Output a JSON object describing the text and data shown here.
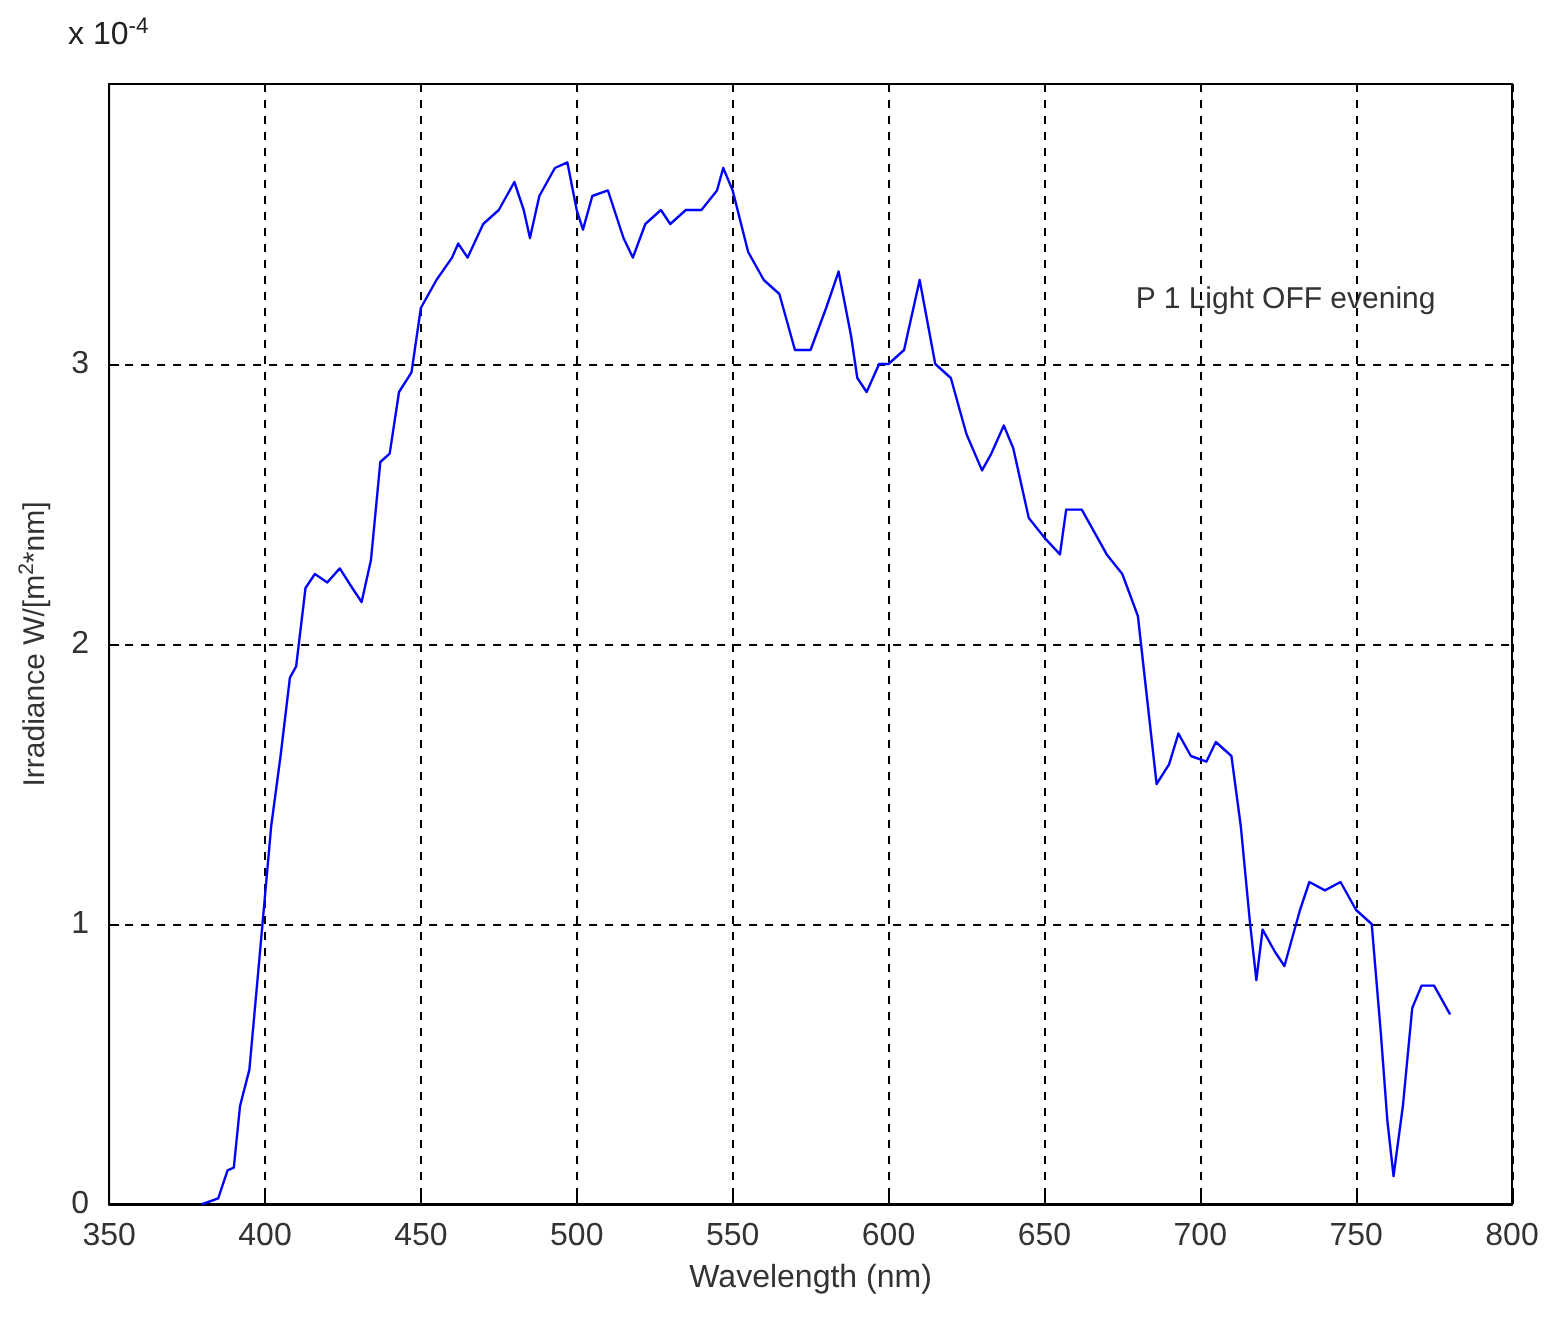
{
  "chart_data": {
    "type": "line",
    "xlabel": "Wavelength (nm)",
    "ylabel": "Irradiance W/[m$^{2}$*nm]",
    "annotations": [
      "x 10$^{-4}$",
      "P 1 Light OFF evening"
    ],
    "xlim": [
      350,
      800
    ],
    "xticks": [
      350,
      400,
      450,
      500,
      550,
      600,
      650,
      700,
      750,
      800
    ],
    "ylim": [
      0,
      4
    ],
    "yticks": [
      0,
      1,
      2,
      3
    ],
    "grid": true,
    "marker": "none",
    "line_style": "solid",
    "x": [
      380,
      385,
      388,
      390,
      392,
      395,
      398,
      400,
      402,
      405,
      408,
      410,
      413,
      416,
      420,
      424,
      428,
      431,
      434,
      437,
      440,
      443,
      447,
      450,
      455,
      460,
      462,
      465,
      470,
      475,
      480,
      483,
      485,
      488,
      493,
      497,
      500,
      502,
      505,
      510,
      515,
      518,
      522,
      527,
      530,
      535,
      540,
      545,
      547,
      550,
      555,
      560,
      565,
      570,
      575,
      580,
      584,
      588,
      590,
      593,
      597,
      600,
      605,
      610,
      615,
      620,
      625,
      630,
      633,
      637,
      640,
      645,
      650,
      655,
      657,
      662,
      665,
      670,
      675,
      680,
      683,
      686,
      690,
      693,
      697,
      702,
      705,
      710,
      713,
      716,
      718,
      720,
      724,
      727,
      732,
      735,
      740,
      745,
      750,
      755,
      758,
      760,
      762,
      765,
      768,
      771,
      775,
      778,
      780
    ],
    "series": [
      {
        "color": "#0000ff",
        "values": [
          0,
          0.02,
          0.12,
          0.13,
          0.35,
          0.48,
          0.85,
          1.1,
          1.35,
          1.6,
          1.88,
          1.92,
          2.2,
          2.25,
          2.22,
          2.27,
          2.2,
          2.15,
          2.3,
          2.65,
          2.68,
          2.9,
          2.97,
          3.2,
          3.3,
          3.38,
          3.43,
          3.38,
          3.5,
          3.55,
          3.65,
          3.55,
          3.45,
          3.6,
          3.7,
          3.72,
          3.55,
          3.48,
          3.6,
          3.62,
          3.45,
          3.38,
          3.5,
          3.55,
          3.5,
          3.55,
          3.55,
          3.62,
          3.7,
          3.62,
          3.4,
          3.3,
          3.25,
          3.05,
          3.05,
          3.2,
          3.33,
          3.1,
          2.95,
          2.9,
          3.0,
          3.0,
          3.05,
          3.3,
          3.0,
          2.95,
          2.75,
          2.62,
          2.68,
          2.78,
          2.7,
          2.45,
          2.38,
          2.32,
          2.48,
          2.48,
          2.42,
          2.32,
          2.25,
          2.1,
          1.8,
          1.5,
          1.57,
          1.68,
          1.6,
          1.58,
          1.65,
          1.6,
          1.35,
          1.0,
          0.8,
          0.98,
          0.9,
          0.85,
          1.05,
          1.15,
          1.12,
          1.15,
          1.05,
          1.0,
          0.6,
          0.3,
          0.1,
          0.35,
          0.7,
          0.78,
          0.78,
          0.72,
          0.68
        ]
      }
    ]
  }
}
